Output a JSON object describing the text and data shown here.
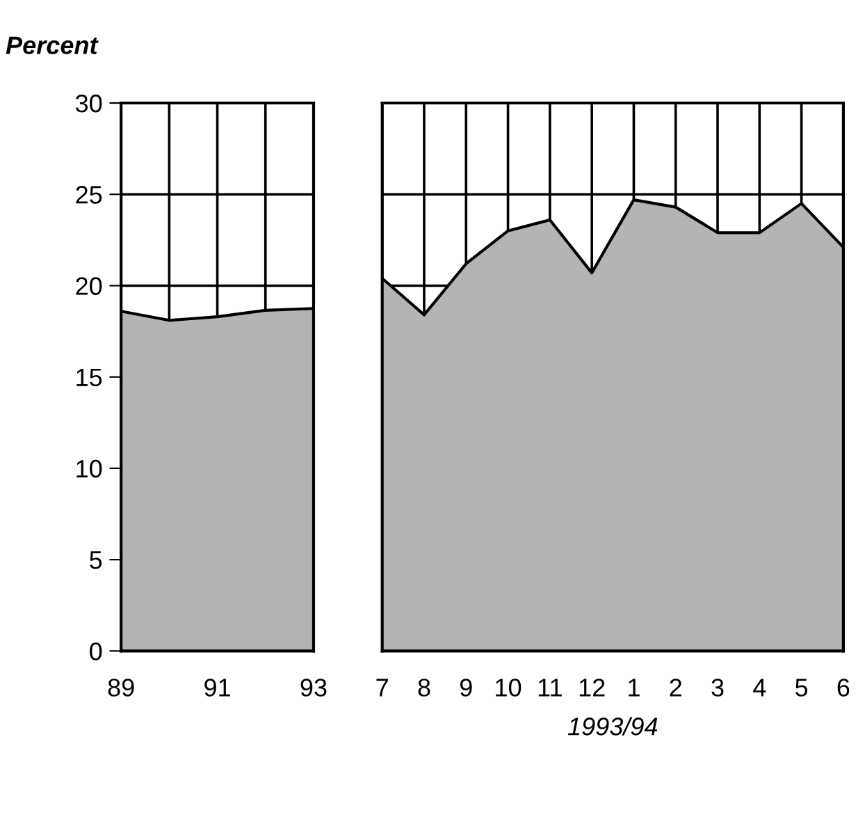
{
  "chart_data": [
    {
      "type": "area",
      "ylabel": "Percent",
      "x": [
        89,
        90,
        91,
        92,
        93
      ],
      "xlim": [
        89,
        93
      ],
      "xticks": [
        89,
        {
          "value": 90,
          "label": null
        },
        91,
        {
          "value": 92,
          "label": null
        },
        93
      ],
      "ylim": [
        0,
        30
      ],
      "yticks": [
        0,
        5,
        10,
        15,
        20,
        25,
        30
      ],
      "grid": true,
      "series": [
        {
          "color": "#b4b4b4",
          "values": [
            18.6,
            18.1,
            18.3,
            18.65,
            18.75
          ]
        }
      ]
    },
    {
      "type": "area",
      "xlabel": "1993/94",
      "categories": [
        "7",
        "8",
        "9",
        "10",
        "11",
        "12",
        "1",
        "2",
        "3",
        "4",
        "5",
        "6"
      ],
      "ylim": [
        0,
        30
      ],
      "yticks": [
        0,
        5,
        10,
        15,
        20,
        25,
        30
      ],
      "grid": true,
      "tick_labels": "x",
      "series": [
        {
          "color": "#b4b4b4",
          "values": [
            20.4,
            18.4,
            21.2,
            23.0,
            23.6,
            20.7,
            24.7,
            24.3,
            22.9,
            22.9,
            24.5,
            22.1
          ]
        }
      ]
    }
  ]
}
